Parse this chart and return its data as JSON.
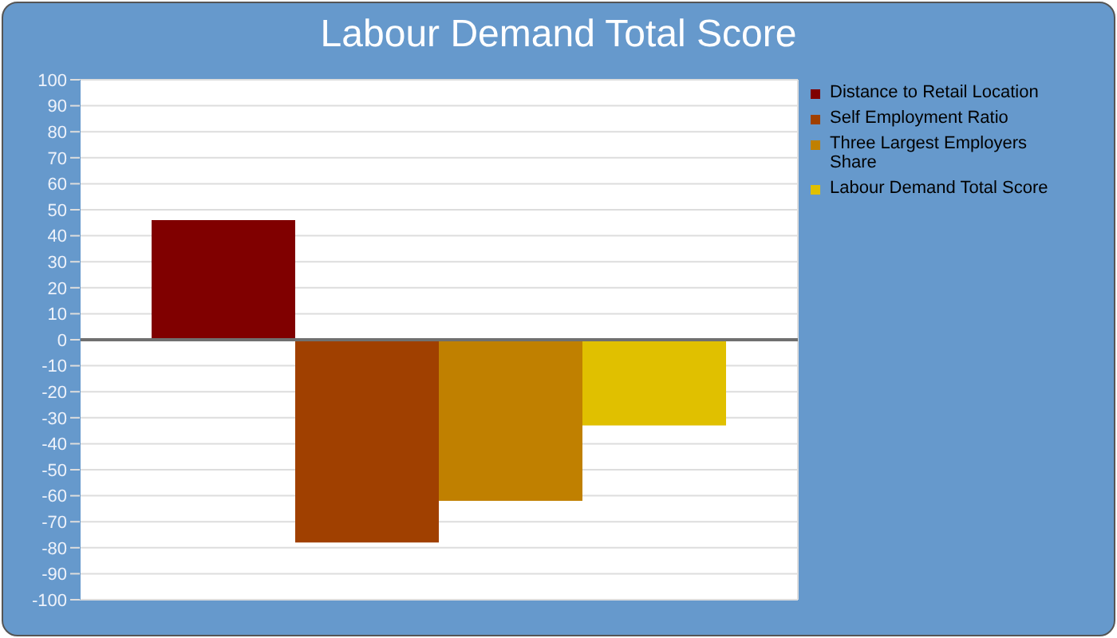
{
  "chart_data": {
    "type": "bar",
    "title": "Labour Demand Total Score",
    "categories": [
      null
    ],
    "series": [
      {
        "name": "Distance to Retail Location",
        "color": "#800000",
        "values": [
          46
        ]
      },
      {
        "name": "Self Employment Ratio",
        "color": "#a04000",
        "values": [
          -78
        ]
      },
      {
        "name": "Three Largest Employers Share",
        "color": "#c08000",
        "values": [
          -62
        ]
      },
      {
        "name": "Labour Demand Total Score",
        "color": "#e0c000",
        "values": [
          -33
        ]
      }
    ],
    "ylim": [
      -100,
      100
    ],
    "yticks": [
      -100,
      -90,
      -80,
      -70,
      -60,
      -50,
      -40,
      -30,
      -20,
      -10,
      0,
      10,
      20,
      30,
      40,
      50,
      60,
      70,
      80,
      90,
      100
    ],
    "ref_lines": [
      {
        "axis": "y",
        "value": 0,
        "color": "#707070"
      }
    ],
    "grid": true,
    "legend": "right",
    "tick_labels": "y"
  }
}
